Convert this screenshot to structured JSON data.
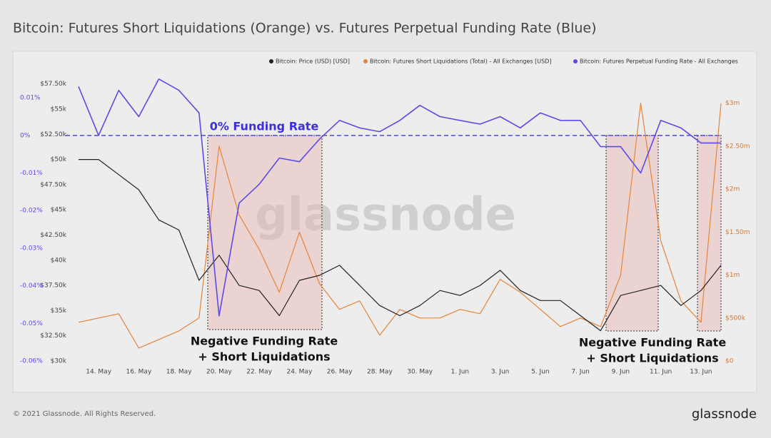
{
  "chart_data": {
    "type": "line",
    "title": "Bitcoin: Futures Short Liquidations (Orange) vs. Futures Perpetual Funding Rate (Blue)",
    "x": [
      "13. May",
      "14. May",
      "15. May",
      "16. May",
      "17. May",
      "18. May",
      "19. May",
      "20. May",
      "21. May",
      "22. May",
      "23. May",
      "24. May",
      "25. May",
      "26. May",
      "27. May",
      "28. May",
      "29. May",
      "30. May",
      "31. May",
      "1. Jun",
      "2. Jun",
      "3. Jun",
      "4. Jun",
      "5. Jun",
      "6. Jun",
      "7. Jun",
      "8. Jun",
      "9. Jun",
      "10. Jun",
      "11. Jun",
      "12. Jun",
      "13. Jun",
      "14. Jun"
    ],
    "xticks": [
      "14. May",
      "16. May",
      "18. May",
      "20. May",
      "22. May",
      "24. May",
      "26. May",
      "28. May",
      "30. May",
      "1. Jun",
      "3. Jun",
      "5. Jun",
      "7. Jun",
      "9. Jun",
      "11. Jun",
      "13. Jun"
    ],
    "series": [
      {
        "name": "Bitcoin: Price (USD) [USD]",
        "color": "#222222",
        "axis": "y",
        "values": [
          50000,
          50000,
          48500,
          47000,
          44000,
          43000,
          38000,
          40500,
          37500,
          37000,
          34500,
          38000,
          38500,
          39500,
          37500,
          35500,
          34500,
          35500,
          37000,
          36500,
          37500,
          39000,
          37000,
          36000,
          36000,
          34500,
          33000,
          36500,
          37000,
          37500,
          35500,
          37000,
          39500
        ]
      },
      {
        "name": "Bitcoin: Futures Short Liquidations (Total) - All Exchanges [USD]",
        "color": "#e8833a",
        "axis": "y2",
        "values": [
          450000,
          500000,
          550000,
          150000,
          250000,
          350000,
          500000,
          2500000,
          1700000,
          1300000,
          800000,
          1500000,
          900000,
          600000,
          700000,
          300000,
          600000,
          500000,
          500000,
          600000,
          550000,
          950000,
          800000,
          600000,
          400000,
          500000,
          400000,
          1000000,
          3000000,
          1400000,
          700000,
          450000,
          3000000
        ]
      },
      {
        "name": "Bitcoin: Futures Perpetual Funding Rate - All Exchanges",
        "color": "#5b4be8",
        "axis": "y3",
        "values": [
          0.013,
          0.0,
          0.012,
          0.005,
          0.015,
          0.012,
          0.006,
          -0.048,
          -0.018,
          -0.013,
          -0.006,
          -0.007,
          -0.001,
          0.004,
          0.002,
          0.001,
          0.004,
          0.008,
          0.005,
          0.004,
          0.003,
          0.005,
          0.002,
          0.006,
          0.004,
          0.004,
          -0.003,
          -0.003,
          -0.01,
          0.004,
          0.002,
          -0.002,
          -0.002
        ]
      }
    ],
    "ylim": [
      30000,
      58400
    ],
    "yticks": [
      {
        "value": 30000,
        "label": "$30k"
      },
      {
        "value": 32500,
        "label": "$32.50k"
      },
      {
        "value": 35000,
        "label": "$35k"
      },
      {
        "value": 37500,
        "label": "$37.50k"
      },
      {
        "value": 40000,
        "label": "$40k"
      },
      {
        "value": 42500,
        "label": "$42.50k"
      },
      {
        "value": 45000,
        "label": "$45k"
      },
      {
        "value": 47500,
        "label": "$47.50k"
      },
      {
        "value": 50000,
        "label": "$50k"
      },
      {
        "value": 52500,
        "label": "$52.50k"
      },
      {
        "value": 55000,
        "label": "$55k"
      },
      {
        "value": 57500,
        "label": "$57.50k"
      }
    ],
    "y2lim": [
      0,
      3330000
    ],
    "y2ticks": [
      {
        "value": 0,
        "label": "$0"
      },
      {
        "value": 500000,
        "label": "$500k"
      },
      {
        "value": 1000000,
        "label": "$1m"
      },
      {
        "value": 1500000,
        "label": "$1.50m"
      },
      {
        "value": 2000000,
        "label": "$2m"
      },
      {
        "value": 2500000,
        "label": "$2.50m"
      },
      {
        "value": 3000000,
        "label": "$3m"
      }
    ],
    "y3lim": [
      -0.06,
      0.0161
    ],
    "y3ticks": [
      {
        "value": -0.06,
        "label": "-0.06%"
      },
      {
        "value": -0.05,
        "label": "-0.05%"
      },
      {
        "value": -0.04,
        "label": "-0.04%"
      },
      {
        "value": -0.03,
        "label": "-0.03%"
      },
      {
        "value": -0.02,
        "label": "-0.02%"
      },
      {
        "value": -0.01,
        "label": "-0.01%"
      },
      {
        "value": 0,
        "label": "0%"
      },
      {
        "value": 0.01,
        "label": "0.01%"
      }
    ],
    "reference_line": {
      "axis": "y3",
      "value": 0,
      "label": "0% Funding Rate"
    },
    "annotations": [
      {
        "lines": [
          "Negative Funding Rate",
          "+ Short Liquidations"
        ]
      },
      {
        "lines": [
          "Negative Funding Rate",
          "+ Short Liquidations"
        ]
      }
    ],
    "grid": false,
    "legend": "top-right",
    "watermark": "glassnode"
  },
  "footer": {
    "copyright": "© 2021 Glassnode. All Rights Reserved.",
    "logo": "glassnode"
  }
}
